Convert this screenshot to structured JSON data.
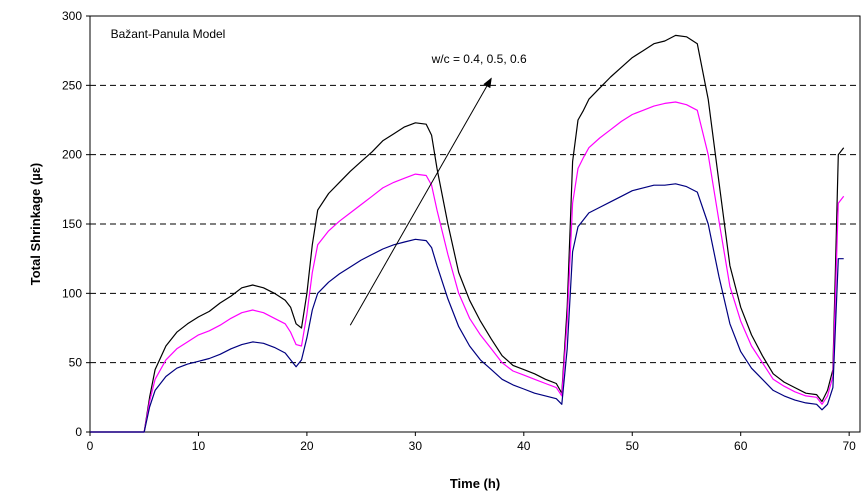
{
  "chart_data": {
    "type": "line",
    "title": "",
    "xlabel": "Time (h)",
    "ylabel": "Total Shrinkage (µε)",
    "xlim": [
      0,
      71
    ],
    "ylim": [
      0,
      300
    ],
    "xticks": [
      0,
      10,
      20,
      30,
      40,
      50,
      60,
      70
    ],
    "yticks": [
      0,
      50,
      100,
      150,
      200,
      250,
      300
    ],
    "grid": "horizontal-dashed",
    "legend": "none",
    "annotations": [
      {
        "text": "Bažant-Panula Model"
      },
      {
        "text": "w/c = 0.4, 0.5, 0.6",
        "arrow_from": [
          24,
          77
        ],
        "arrow_to": [
          37,
          255
        ]
      }
    ],
    "series": [
      {
        "color": "#000000",
        "x": [
          0,
          5,
          5.5,
          6,
          7,
          8,
          9,
          10,
          11,
          12,
          13,
          14,
          15,
          16,
          17,
          18,
          18.5,
          19,
          19.5,
          20,
          20.5,
          21,
          22,
          23,
          24,
          25,
          26,
          27,
          28,
          29,
          30,
          31,
          31.5,
          32,
          33,
          34,
          35,
          36,
          37,
          38,
          39,
          40,
          41,
          42,
          43,
          43.5,
          44,
          44.5,
          45,
          45.5,
          46,
          47,
          48,
          49,
          50,
          51,
          52,
          53,
          54,
          55,
          56,
          57,
          58,
          59,
          60,
          61,
          62,
          63,
          64,
          65,
          66,
          67,
          67.5,
          68,
          68.5,
          69,
          69.5
        ],
        "y": [
          0,
          0,
          25,
          45,
          62,
          72,
          78,
          83,
          87,
          93,
          98,
          104,
          106,
          104,
          100,
          95,
          90,
          78,
          75,
          100,
          135,
          160,
          172,
          180,
          188,
          195,
          202,
          210,
          215,
          220,
          223,
          222,
          214,
          190,
          150,
          115,
          95,
          80,
          67,
          55,
          48,
          45,
          42,
          38,
          35,
          28,
          90,
          195,
          225,
          232,
          240,
          248,
          256,
          263,
          270,
          275,
          280,
          282,
          286,
          285,
          280,
          240,
          180,
          120,
          90,
          70,
          55,
          42,
          36,
          32,
          28,
          27,
          22,
          30,
          45,
          200,
          205
        ]
      },
      {
        "color": "#ff00ff",
        "x": [
          0,
          5,
          5.5,
          6,
          7,
          8,
          9,
          10,
          11,
          12,
          13,
          14,
          15,
          16,
          17,
          18,
          18.5,
          19,
          19.5,
          20,
          20.5,
          21,
          22,
          23,
          24,
          25,
          26,
          27,
          28,
          29,
          30,
          31,
          31.5,
          32,
          33,
          34,
          35,
          36,
          37,
          38,
          39,
          40,
          41,
          42,
          43,
          43.5,
          44,
          44.5,
          45,
          45.5,
          46,
          47,
          48,
          49,
          50,
          51,
          52,
          53,
          54,
          55,
          56,
          57,
          58,
          59,
          60,
          61,
          62,
          63,
          64,
          65,
          66,
          67,
          67.5,
          68,
          68.5,
          69,
          69.5
        ],
        "y": [
          0,
          0,
          22,
          38,
          52,
          60,
          65,
          70,
          73,
          77,
          82,
          86,
          88,
          86,
          82,
          78,
          72,
          63,
          62,
          85,
          115,
          135,
          145,
          152,
          158,
          164,
          170,
          176,
          180,
          183,
          186,
          185,
          178,
          160,
          128,
          100,
          82,
          70,
          60,
          50,
          44,
          41,
          38,
          35,
          32,
          26,
          80,
          165,
          190,
          198,
          205,
          212,
          218,
          224,
          229,
          232,
          235,
          237,
          238,
          236,
          232,
          200,
          152,
          105,
          80,
          62,
          50,
          38,
          33,
          29,
          26,
          25,
          20,
          26,
          40,
          165,
          170
        ]
      },
      {
        "color": "#000080",
        "x": [
          0,
          5,
          5.5,
          6,
          7,
          8,
          9,
          10,
          11,
          12,
          13,
          14,
          15,
          16,
          17,
          18,
          18.5,
          19,
          19.5,
          20,
          20.5,
          21,
          22,
          23,
          24,
          25,
          26,
          27,
          28,
          29,
          30,
          31,
          31.5,
          32,
          33,
          34,
          35,
          36,
          37,
          38,
          39,
          40,
          41,
          42,
          43,
          43.5,
          44,
          44.5,
          45,
          45.5,
          46,
          47,
          48,
          49,
          50,
          51,
          52,
          53,
          54,
          55,
          56,
          57,
          58,
          59,
          60,
          61,
          62,
          63,
          64,
          65,
          66,
          67,
          67.5,
          68,
          68.5,
          69,
          69.5
        ],
        "y": [
          0,
          0,
          18,
          30,
          40,
          46,
          49,
          51,
          53,
          56,
          60,
          63,
          65,
          64,
          61,
          57,
          52,
          47,
          52,
          68,
          88,
          100,
          108,
          114,
          119,
          124,
          128,
          132,
          135,
          137,
          139,
          138,
          133,
          120,
          96,
          76,
          62,
          52,
          45,
          38,
          34,
          31,
          28,
          26,
          24,
          20,
          60,
          130,
          148,
          153,
          158,
          162,
          166,
          170,
          174,
          176,
          178,
          178,
          179,
          177,
          173,
          150,
          112,
          78,
          58,
          46,
          38,
          30,
          26,
          23,
          21,
          20,
          16,
          20,
          32,
          125,
          125
        ]
      }
    ]
  }
}
